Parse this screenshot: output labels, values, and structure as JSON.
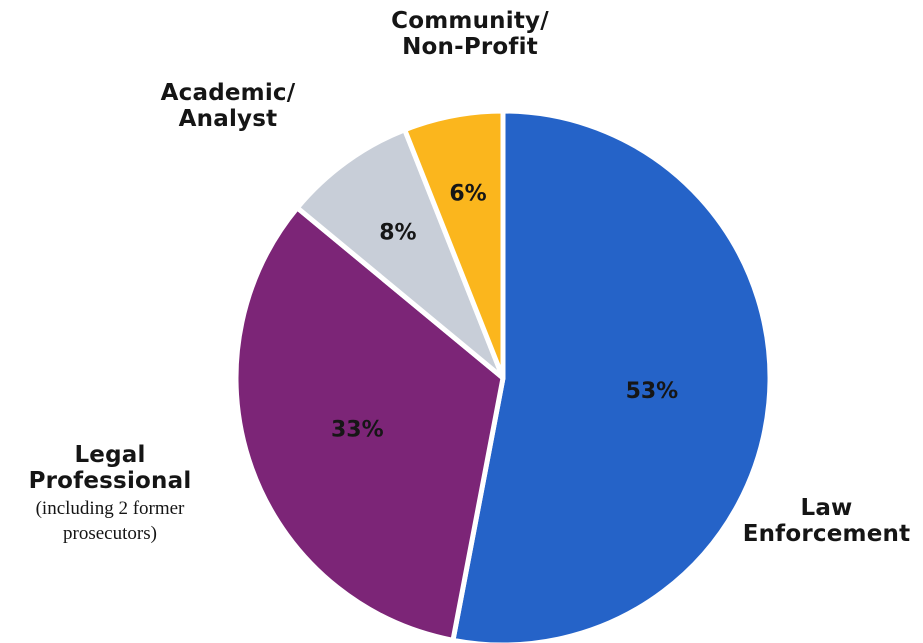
{
  "chart_data": {
    "type": "pie",
    "title": "",
    "slices": [
      {
        "label_lines": [
          "Law",
          "Enforcement"
        ],
        "note": "",
        "value": 53,
        "value_label": "53%",
        "color": "#2563c8"
      },
      {
        "label_lines": [
          "Legal",
          "Professional"
        ],
        "note": "(including 2 former prosecutors)",
        "value": 33,
        "value_label": "33%",
        "color": "#7c2577"
      },
      {
        "label_lines": [
          "Academic/",
          "Analyst"
        ],
        "note": "",
        "value": 8,
        "value_label": "8%",
        "color": "#c8ced8"
      },
      {
        "label_lines": [
          "Community/",
          "Non-Profit"
        ],
        "note": "",
        "value": 6,
        "value_label": "6%",
        "color": "#fbb61d"
      }
    ],
    "start_at": "top",
    "direction": "clockwise",
    "legend": "none",
    "slice_border_color": "#ffffff"
  }
}
